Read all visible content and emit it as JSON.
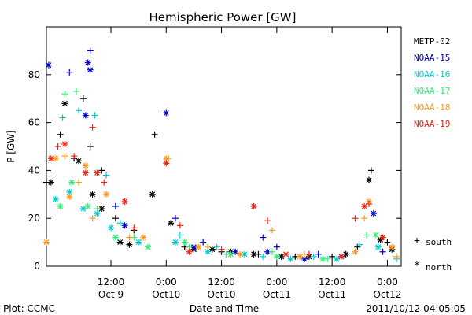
{
  "chart_data": {
    "type": "scatter",
    "title": "Hemispheric Power [GW]",
    "xlabel": "Date and Time",
    "ylabel": "P [GW]",
    "x_unit": "UT",
    "xlim": [
      "2011-10-08 22:00",
      "2011-10-12 03:00"
    ],
    "ylim": [
      0,
      100
    ],
    "y_ticks": [
      0,
      20,
      40,
      60,
      80
    ],
    "x_ticks": [
      {
        "time": "2011-10-09 12:00",
        "line1": "12:00",
        "line2": "Oct 9"
      },
      {
        "time": "2011-10-10 00:00",
        "line1": "0:00",
        "line2": "Oct10"
      },
      {
        "time": "2011-10-10 12:00",
        "line1": "12:00",
        "line2": "Oct10"
      },
      {
        "time": "2011-10-11 00:00",
        "line1": "0:00",
        "line2": "Oct11"
      },
      {
        "time": "2011-10-11 12:00",
        "line1": "12:00",
        "line2": "Oct11"
      },
      {
        "time": "2011-10-12 00:00",
        "line1": "0:00",
        "line2": "Oct12"
      }
    ],
    "grid": false,
    "legend_position": "right",
    "marker_legend": [
      {
        "symbol": "+",
        "label": "south"
      },
      {
        "symbol": "*",
        "label": "north"
      }
    ],
    "series": [
      {
        "name": "METP-02",
        "color": "#000000",
        "south": [
          [
            "2011-10-08 22:00",
            35
          ],
          [
            "2011-10-09 01:00",
            55
          ],
          [
            "2011-10-09 04:00",
            45
          ],
          [
            "2011-10-09 06:00",
            70
          ],
          [
            "2011-10-09 07:30",
            50
          ],
          [
            "2011-10-09 10:00",
            40
          ],
          [
            "2011-10-09 13:00",
            20
          ],
          [
            "2011-10-09 17:00",
            15
          ],
          [
            "2011-10-09 21:30",
            55
          ],
          [
            "2011-10-10 04:00",
            8
          ],
          [
            "2011-10-10 12:00",
            6
          ],
          [
            "2011-10-10 20:00",
            5
          ],
          [
            "2011-10-11 04:00",
            4
          ],
          [
            "2011-10-11 12:00",
            4
          ],
          [
            "2011-10-11 17:30",
            8
          ],
          [
            "2011-10-11 20:30",
            40
          ],
          [
            "2011-10-12 00:00",
            10
          ]
        ],
        "north": [
          [
            "2011-10-08 23:00",
            35
          ],
          [
            "2011-10-09 02:00",
            68
          ],
          [
            "2011-10-09 05:00",
            44
          ],
          [
            "2011-10-09 08:00",
            30
          ],
          [
            "2011-10-09 10:00",
            24
          ],
          [
            "2011-10-09 14:00",
            10
          ],
          [
            "2011-10-09 16:00",
            9
          ],
          [
            "2011-10-09 21:00",
            30
          ],
          [
            "2011-10-10 01:00",
            18
          ],
          [
            "2011-10-10 06:00",
            7
          ],
          [
            "2011-10-10 10:00",
            7
          ],
          [
            "2011-10-10 14:00",
            6
          ],
          [
            "2011-10-10 19:00",
            5
          ],
          [
            "2011-10-11 01:00",
            4
          ],
          [
            "2011-10-11 07:00",
            4
          ],
          [
            "2011-10-11 15:00",
            5
          ],
          [
            "2011-10-11 20:00",
            36
          ],
          [
            "2011-10-11 22:30",
            11
          ],
          [
            "2011-10-12 01:00",
            7
          ]
        ]
      },
      {
        "name": "NOAA-15",
        "color": "#0000cc",
        "south": [
          [
            "2011-10-09 03:00",
            81
          ],
          [
            "2011-10-09 07:30",
            90
          ],
          [
            "2011-10-09 13:00",
            25
          ],
          [
            "2011-10-10 02:00",
            20
          ],
          [
            "2011-10-10 08:00",
            10
          ],
          [
            "2011-10-10 21:00",
            12
          ],
          [
            "2011-10-11 00:00",
            8
          ],
          [
            "2011-10-11 09:00",
            5
          ],
          [
            "2011-10-11 23:00",
            6
          ]
        ],
        "north": [
          [
            "2011-10-08 22:30",
            84
          ],
          [
            "2011-10-09 06:30",
            63
          ],
          [
            "2011-10-09 07:00",
            85
          ],
          [
            "2011-10-09 07:30",
            82
          ],
          [
            "2011-10-09 15:00",
            17
          ],
          [
            "2011-10-10 00:00",
            64
          ],
          [
            "2011-10-10 06:00",
            8
          ],
          [
            "2011-10-10 15:00",
            6
          ],
          [
            "2011-10-10 22:00",
            6
          ],
          [
            "2011-10-11 06:00",
            3
          ],
          [
            "2011-10-11 14:00",
            4
          ],
          [
            "2011-10-11 21:00",
            22
          ]
        ]
      },
      {
        "name": "NOAA-16",
        "color": "#00cccc",
        "south": [
          [
            "2011-10-09 01:30",
            62
          ],
          [
            "2011-10-09 05:00",
            65
          ],
          [
            "2011-10-09 08:30",
            63
          ],
          [
            "2011-10-09 11:00",
            38
          ],
          [
            "2011-10-09 14:00",
            18
          ],
          [
            "2011-10-10 03:00",
            13
          ],
          [
            "2011-10-10 11:00",
            8
          ],
          [
            "2011-10-10 21:00",
            4
          ],
          [
            "2011-10-11 08:00",
            4
          ],
          [
            "2011-10-11 18:00",
            9
          ],
          [
            "2011-10-12 02:00",
            3
          ]
        ],
        "north": [
          [
            "2011-10-09 00:00",
            28
          ],
          [
            "2011-10-09 03:00",
            31
          ],
          [
            "2011-10-09 06:00",
            24
          ],
          [
            "2011-10-09 09:00",
            22
          ],
          [
            "2011-10-09 12:00",
            16
          ],
          [
            "2011-10-09 18:00",
            10
          ],
          [
            "2011-10-10 02:00",
            10
          ],
          [
            "2011-10-10 09:00",
            6
          ],
          [
            "2011-10-10 17:00",
            5
          ],
          [
            "2011-10-11 03:00",
            3
          ],
          [
            "2011-10-11 13:00",
            3
          ],
          [
            "2011-10-11 22:00",
            8
          ]
        ]
      },
      {
        "name": "NOAA-17",
        "color": "#33ee77",
        "south": [
          [
            "2011-10-09 02:00",
            72
          ],
          [
            "2011-10-09 04:30",
            73
          ],
          [
            "2011-10-09 09:00",
            24
          ],
          [
            "2011-10-09 17:00",
            12
          ],
          [
            "2011-10-10 05:00",
            8
          ],
          [
            "2011-10-10 13:00",
            5
          ],
          [
            "2011-10-10 23:00",
            6
          ],
          [
            "2011-10-11 11:00",
            3
          ],
          [
            "2011-10-11 19:30",
            13
          ]
        ],
        "north": [
          [
            "2011-10-09 01:00",
            25
          ],
          [
            "2011-10-09 03:30",
            35
          ],
          [
            "2011-10-09 07:00",
            25
          ],
          [
            "2011-10-09 13:00",
            12
          ],
          [
            "2011-10-09 20:00",
            8
          ],
          [
            "2011-10-10 04:00",
            10
          ],
          [
            "2011-10-10 14:00",
            5
          ],
          [
            "2011-10-11 00:00",
            4
          ],
          [
            "2011-10-11 10:00",
            3
          ],
          [
            "2011-10-11 21:30",
            13
          ]
        ]
      },
      {
        "name": "NOAA-18",
        "color": "#ff9922",
        "south": [
          [
            "2011-10-09 02:00",
            46
          ],
          [
            "2011-10-09 05:00",
            35
          ],
          [
            "2011-10-09 08:00",
            20
          ],
          [
            "2011-10-09 16:00",
            12
          ],
          [
            "2011-10-10 00:30",
            45
          ],
          [
            "2011-10-10 09:00",
            8
          ],
          [
            "2011-10-10 23:00",
            15
          ],
          [
            "2011-10-11 06:00",
            5
          ],
          [
            "2011-10-11 19:00",
            20
          ],
          [
            "2011-10-12 02:00",
            4
          ]
        ],
        "north": [
          [
            "2011-10-08 22:00",
            10
          ],
          [
            "2011-10-09 00:00",
            45
          ],
          [
            "2011-10-09 03:00",
            29
          ],
          [
            "2011-10-09 06:30",
            42
          ],
          [
            "2011-10-09 11:00",
            30
          ],
          [
            "2011-10-09 19:00",
            12
          ],
          [
            "2011-10-10 00:00",
            45
          ],
          [
            "2011-10-10 07:00",
            8
          ],
          [
            "2011-10-10 16:00",
            5
          ],
          [
            "2011-10-11 05:00",
            4
          ],
          [
            "2011-10-11 17:00",
            6
          ],
          [
            "2011-10-11 20:00",
            27
          ],
          [
            "2011-10-12 01:00",
            8
          ]
        ]
      },
      {
        "name": "NOAA-19",
        "color": "#ee2211",
        "south": [
          [
            "2011-10-09 00:30",
            50
          ],
          [
            "2011-10-09 04:00",
            46
          ],
          [
            "2011-10-09 08:00",
            58
          ],
          [
            "2011-10-09 10:30",
            35
          ],
          [
            "2011-10-09 17:00",
            16
          ],
          [
            "2011-10-10 03:00",
            17
          ],
          [
            "2011-10-10 12:00",
            7
          ],
          [
            "2011-10-10 22:00",
            19
          ],
          [
            "2011-10-11 07:00",
            5
          ],
          [
            "2011-10-11 17:00",
            20
          ],
          [
            "2011-10-11 20:00",
            26
          ]
        ],
        "north": [
          [
            "2011-10-08 23:00",
            45
          ],
          [
            "2011-10-09 02:00",
            51
          ],
          [
            "2011-10-09 06:30",
            39
          ],
          [
            "2011-10-09 09:00",
            39
          ],
          [
            "2011-10-09 15:00",
            27
          ],
          [
            "2011-10-10 00:00",
            43
          ],
          [
            "2011-10-10 05:00",
            6
          ],
          [
            "2011-10-10 19:00",
            25
          ],
          [
            "2011-10-11 02:00",
            5
          ],
          [
            "2011-10-11 14:00",
            4
          ],
          [
            "2011-10-11 19:00",
            25
          ],
          [
            "2011-10-11 23:00",
            12
          ]
        ]
      }
    ]
  },
  "footer": {
    "plot_label": "Plot: CCMC",
    "timestamp": "2011/10/12 04:05:05"
  }
}
